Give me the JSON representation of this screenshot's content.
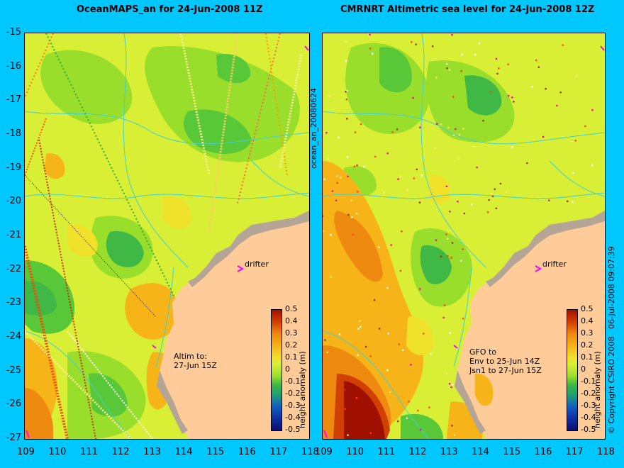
{
  "left_panel": {
    "title": "OceanMAPS_an for 24-Jun-2008 11Z",
    "side_label": "ocean_an_20080624",
    "drifter_label": "drifter",
    "annotation": "Altim to:\n27-Jun 15Z",
    "colorbar_label": "height anomaly (m)"
  },
  "right_panel": {
    "title": "CMRNRT Altimetric sea level  for 24-Jun-2008 12Z",
    "side_label": "06-Jul-2008 09:07:39",
    "copyright": "© Copyright CSIRO 2008",
    "drifter_label": "drifter",
    "annotation": "GFO to\nEnv to 25-Jun 14Z\nJsn1 to 27-Jun 15Z",
    "colorbar_label": "height anomaly (m)"
  },
  "y_ticks": [
    "-15",
    "-16",
    "-17",
    "-18",
    "-19",
    "-20",
    "-21",
    "-22",
    "-23",
    "-24",
    "-25",
    "-26",
    "-27"
  ],
  "x_ticks": [
    "109",
    "110",
    "111",
    "112",
    "113",
    "114",
    "115",
    "116",
    "117",
    "118"
  ],
  "colorbar_ticks": [
    "0.5",
    "0.4",
    "0.3",
    "0.2",
    "0.1",
    "0",
    "-0.1",
    "-0.2",
    "-0.3",
    "-0.4",
    "-0.5"
  ],
  "colors": {
    "background": "#00c8ff",
    "land": "#ffcc99",
    "coast_shelf": "#b4a596",
    "contour": "#40d0d0",
    "drifter": "#ff00ff"
  }
}
